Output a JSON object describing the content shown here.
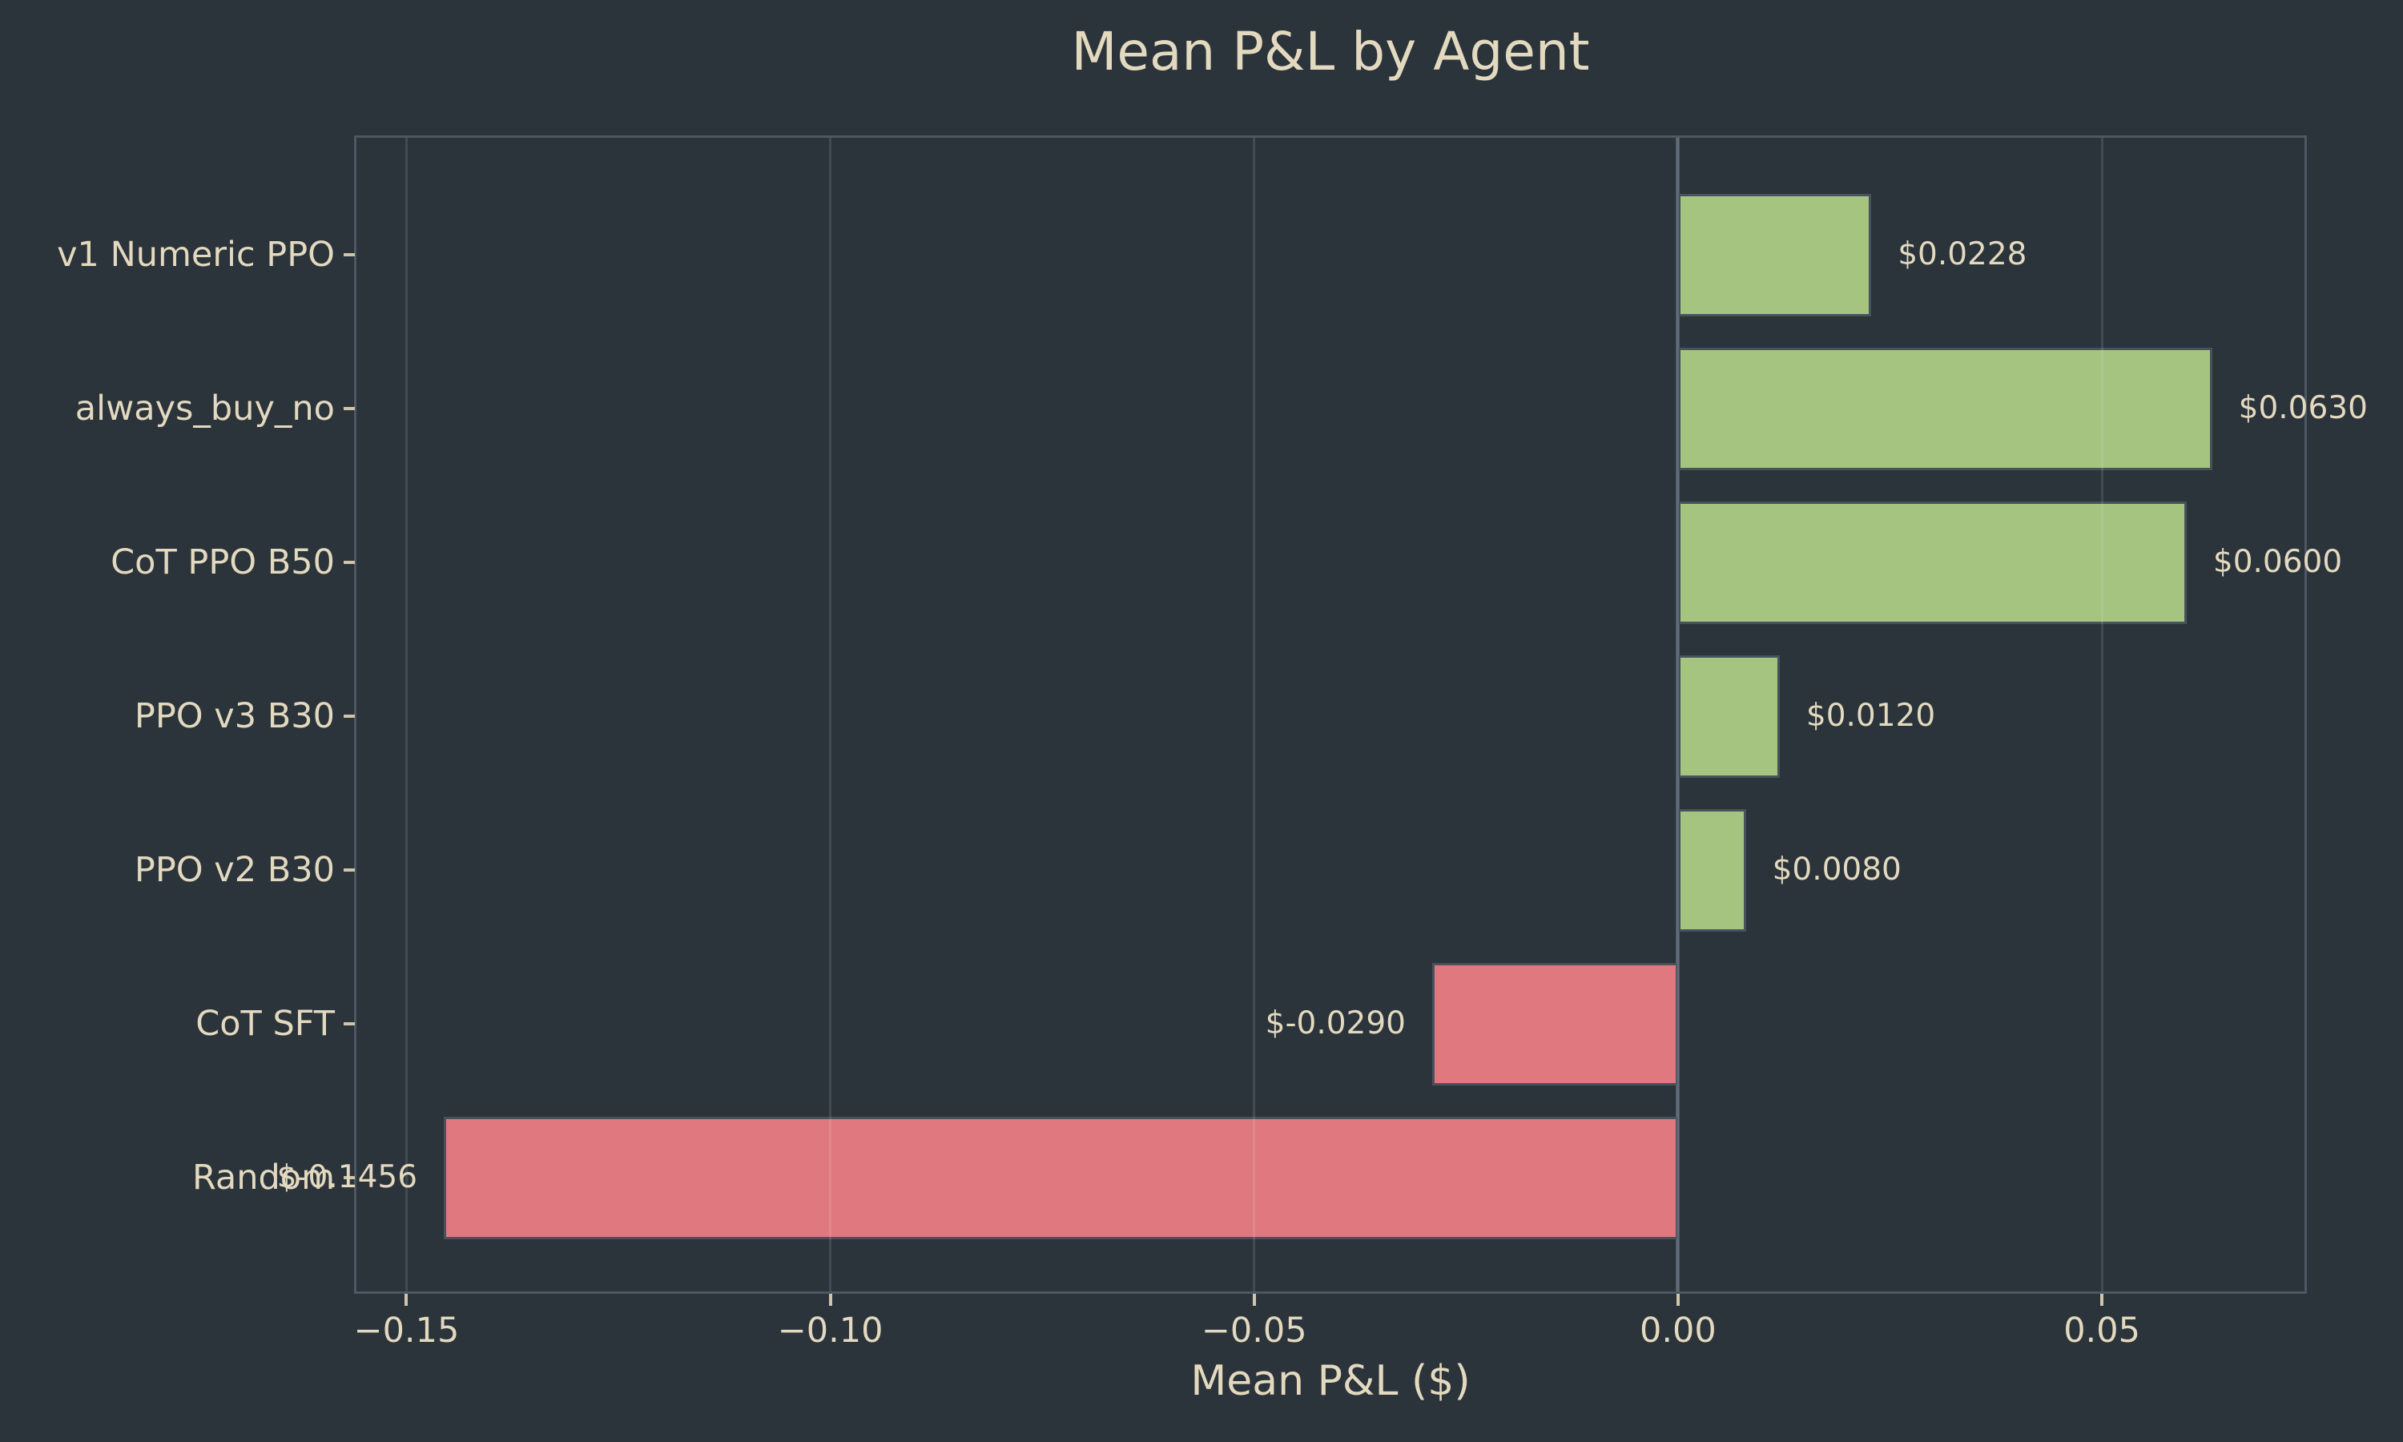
{
  "chart_data": {
    "type": "bar",
    "orientation": "horizontal",
    "title": "Mean P&L by Agent",
    "xlabel": "Mean P&L ($)",
    "ylabel": "",
    "categories": [
      "v1 Numeric PPO",
      "always_buy_no",
      "CoT PPO B50",
      "PPO v3 B30",
      "PPO v2 B30",
      "CoT SFT",
      "Random"
    ],
    "values": [
      0.0228,
      0.063,
      0.06,
      0.012,
      0.008,
      -0.029,
      -0.1456
    ],
    "value_labels": [
      "$0.0228",
      "$0.0630",
      "$0.0600",
      "$0.0120",
      "$0.0080",
      "$-0.0290",
      "$-0.1456"
    ],
    "xlim": [
      -0.1559,
      0.0739
    ],
    "x_ticks": [
      {
        "value": -0.15,
        "label": "−0.15"
      },
      {
        "value": -0.1,
        "label": "−0.10"
      },
      {
        "value": -0.05,
        "label": "−0.05"
      },
      {
        "value": 0.0,
        "label": "0.00"
      },
      {
        "value": 0.05,
        "label": "0.05"
      }
    ],
    "grid": "vertical-on",
    "legend": "none",
    "zero_baseline": 0,
    "colors": {
      "positive_bar": "#a5c480",
      "negative_bar": "#e0797f",
      "bar_edge": "#46525c",
      "background": "#2b333b",
      "text": "#e3d9bf",
      "spine": "#4d5862",
      "zero_line": "#4d5a66",
      "grid_line": "rgba(225,235,245,0.13)",
      "tick_mark": "#cfc5ab"
    }
  }
}
